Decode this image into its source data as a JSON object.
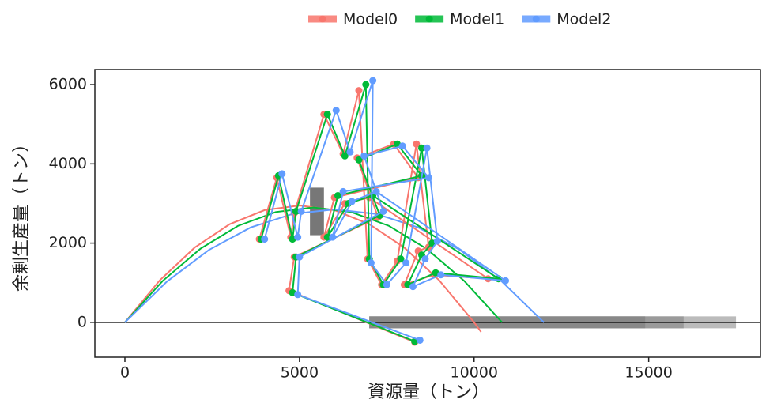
{
  "chart_data": {
    "type": "line",
    "legend": "top",
    "xlabel": "資源量（トン）",
    "ylabel": "余剰生産量（トン）",
    "xlim": [
      -860,
      18200
    ],
    "ylim": [
      -880,
      6380
    ],
    "xticks": [
      0,
      5000,
      10000,
      15000
    ],
    "yticks": [
      0,
      2000,
      4000,
      6000
    ],
    "hline": 0,
    "boxes": [
      {
        "xmin": 7000,
        "xmax": 17500,
        "ymin": -150,
        "ymax": 150,
        "color": "#bbbbbb"
      },
      {
        "xmin": 7000,
        "xmax": 16000,
        "ymin": -150,
        "ymax": 150,
        "color": "#9a9a9a"
      },
      {
        "xmin": 7000,
        "xmax": 14900,
        "ymin": -150,
        "ymax": 150,
        "color": "#888888"
      },
      {
        "xmin": 5300,
        "xmax": 5700,
        "ymin": 2200,
        "ymax": 3400,
        "color": "#777777"
      }
    ],
    "series": [
      {
        "name": "Model0",
        "color": "#F8766D",
        "x": [
          3850,
          4350,
          4750,
          4850,
          5700,
          6250,
          6700,
          6950,
          7350,
          7800,
          8350,
          8700,
          8400,
          8000,
          8850,
          10400,
          7000,
          6300,
          5700,
          6000,
          8400,
          7700,
          6650,
          7250,
          4850,
          4700,
          8300
        ],
        "values": [
          2100,
          3650,
          2150,
          2750,
          5250,
          4250,
          5850,
          1600,
          950,
          1550,
          4500,
          1900,
          1800,
          950,
          1200,
          1100,
          3150,
          3000,
          2150,
          3150,
          3650,
          4500,
          4150,
          2650,
          1650,
          800,
          -500
        ],
        "curve": {
          "x": [
            0,
            1000,
            2000,
            3000,
            4000,
            5000,
            6000,
            7000,
            8000,
            9000,
            10000,
            10200
          ],
          "values": [
            0,
            1062,
            1888,
            2478,
            2832,
            2950,
            2832,
            2478,
            1888,
            1062,
            0,
            -241
          ]
        }
      },
      {
        "name": "Model1",
        "color": "#00BA38",
        "x": [
          3900,
          4400,
          4800,
          4900,
          5800,
          6300,
          6900,
          7000,
          7400,
          7900,
          8500,
          8800,
          8500,
          8100,
          8900,
          10700,
          7100,
          6400,
          5800,
          6100,
          8500,
          7800,
          6700,
          7300,
          4900,
          4800,
          8300
        ],
        "values": [
          2100,
          3700,
          2100,
          2800,
          5250,
          4200,
          6000,
          1600,
          950,
          1600,
          4400,
          2000,
          1700,
          950,
          1250,
          1100,
          3200,
          3000,
          2150,
          3200,
          3700,
          4500,
          4100,
          2700,
          1650,
          750,
          -480
        ],
        "curve": {
          "x": [
            0,
            1080,
            2160,
            3240,
            4320,
            5400,
            6480,
            7560,
            8640,
            9720,
            10800
          ],
          "values": [
            0,
            1044,
            1856,
            2436,
            2784,
            2900,
            2784,
            2436,
            1856,
            1044,
            0
          ]
        }
      },
      {
        "name": "Model2",
        "color": "#619CFF",
        "x": [
          4000,
          4500,
          4950,
          5050,
          6050,
          6450,
          7100,
          7050,
          7500,
          8050,
          8650,
          8950,
          8600,
          8250,
          9050,
          10900,
          7200,
          6500,
          5950,
          6250,
          8700,
          7950,
          6850,
          7400,
          5000,
          4950,
          8450
        ],
        "values": [
          2100,
          3750,
          2150,
          2800,
          5350,
          4300,
          6100,
          1500,
          950,
          1500,
          4400,
          2050,
          1600,
          900,
          1200,
          1050,
          3300,
          3050,
          2150,
          3300,
          3650,
          4450,
          4200,
          2800,
          1650,
          700,
          -450
        ],
        "curve": {
          "x": [
            0,
            1200,
            2400,
            3600,
            4800,
            6000,
            7200,
            8400,
            9600,
            10800,
            12000
          ],
          "values": [
            0,
            1026,
            1824,
            2394,
            2736,
            2850,
            2736,
            2394,
            1824,
            1026,
            0
          ]
        }
      }
    ]
  }
}
